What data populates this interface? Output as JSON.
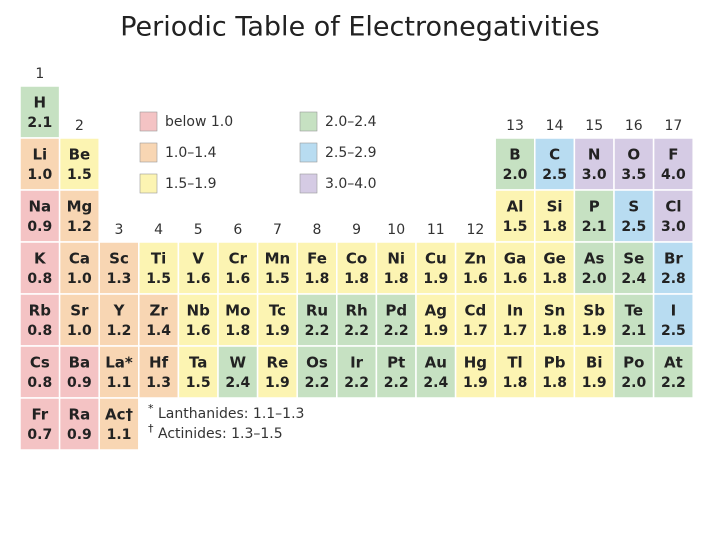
{
  "title": "Periodic Table of Electronegativities",
  "groups": [
    "1",
    "2",
    "3",
    "4",
    "5",
    "6",
    "7",
    "8",
    "9",
    "10",
    "11",
    "12",
    "13",
    "14",
    "15",
    "16",
    "17"
  ],
  "legend": [
    {
      "label": "below 1.0",
      "color": "#f4c3c4"
    },
    {
      "label": "1.0–1.4",
      "color": "#f8d6b3"
    },
    {
      "label": "1.5–1.9",
      "color": "#fcf4b2"
    },
    {
      "label": "2.0–2.4",
      "color": "#c6e1c2"
    },
    {
      "label": "2.5–2.9",
      "color": "#b8dcf1"
    },
    {
      "label": "3.0–4.0",
      "color": "#d5cbe4"
    }
  ],
  "rows": [
    [
      {
        "symbol": "H",
        "value": "2.1",
        "color": "#c6e1c2"
      },
      null,
      null,
      null,
      null,
      null,
      null,
      null,
      null,
      null,
      null,
      null,
      null,
      null,
      null,
      null,
      null
    ],
    [
      {
        "symbol": "Li",
        "value": "1.0",
        "color": "#f8d6b3"
      },
      {
        "symbol": "Be",
        "value": "1.5",
        "color": "#fcf4b2"
      },
      null,
      null,
      null,
      null,
      null,
      null,
      null,
      null,
      null,
      null,
      {
        "symbol": "B",
        "value": "2.0",
        "color": "#c6e1c2"
      },
      {
        "symbol": "C",
        "value": "2.5",
        "color": "#b8dcf1"
      },
      {
        "symbol": "N",
        "value": "3.0",
        "color": "#d5cbe4"
      },
      {
        "symbol": "O",
        "value": "3.5",
        "color": "#d5cbe4"
      },
      {
        "symbol": "F",
        "value": "4.0",
        "color": "#d5cbe4"
      }
    ],
    [
      {
        "symbol": "Na",
        "value": "0.9",
        "color": "#f4c3c4"
      },
      {
        "symbol": "Mg",
        "value": "1.2",
        "color": "#f8d6b3"
      },
      null,
      null,
      null,
      null,
      null,
      null,
      null,
      null,
      null,
      null,
      {
        "symbol": "Al",
        "value": "1.5",
        "color": "#fcf4b2"
      },
      {
        "symbol": "Si",
        "value": "1.8",
        "color": "#fcf4b2"
      },
      {
        "symbol": "P",
        "value": "2.1",
        "color": "#c6e1c2"
      },
      {
        "symbol": "S",
        "value": "2.5",
        "color": "#b8dcf1"
      },
      {
        "symbol": "Cl",
        "value": "3.0",
        "color": "#d5cbe4"
      }
    ],
    [
      {
        "symbol": "K",
        "value": "0.8",
        "color": "#f4c3c4"
      },
      {
        "symbol": "Ca",
        "value": "1.0",
        "color": "#f8d6b3"
      },
      {
        "symbol": "Sc",
        "value": "1.3",
        "color": "#f8d6b3"
      },
      {
        "symbol": "Ti",
        "value": "1.5",
        "color": "#fcf4b2"
      },
      {
        "symbol": "V",
        "value": "1.6",
        "color": "#fcf4b2"
      },
      {
        "symbol": "Cr",
        "value": "1.6",
        "color": "#fcf4b2"
      },
      {
        "symbol": "Mn",
        "value": "1.5",
        "color": "#fcf4b2"
      },
      {
        "symbol": "Fe",
        "value": "1.8",
        "color": "#fcf4b2"
      },
      {
        "symbol": "Co",
        "value": "1.8",
        "color": "#fcf4b2"
      },
      {
        "symbol": "Ni",
        "value": "1.8",
        "color": "#fcf4b2"
      },
      {
        "symbol": "Cu",
        "value": "1.9",
        "color": "#fcf4b2"
      },
      {
        "symbol": "Zn",
        "value": "1.6",
        "color": "#fcf4b2"
      },
      {
        "symbol": "Ga",
        "value": "1.6",
        "color": "#fcf4b2"
      },
      {
        "symbol": "Ge",
        "value": "1.8",
        "color": "#fcf4b2"
      },
      {
        "symbol": "As",
        "value": "2.0",
        "color": "#c6e1c2"
      },
      {
        "symbol": "Se",
        "value": "2.4",
        "color": "#c6e1c2"
      },
      {
        "symbol": "Br",
        "value": "2.8",
        "color": "#b8dcf1"
      }
    ],
    [
      {
        "symbol": "Rb",
        "value": "0.8",
        "color": "#f4c3c4"
      },
      {
        "symbol": "Sr",
        "value": "1.0",
        "color": "#f8d6b3"
      },
      {
        "symbol": "Y",
        "value": "1.2",
        "color": "#f8d6b3"
      },
      {
        "symbol": "Zr",
        "value": "1.4",
        "color": "#f8d6b3"
      },
      {
        "symbol": "Nb",
        "value": "1.6",
        "color": "#fcf4b2"
      },
      {
        "symbol": "Mo",
        "value": "1.8",
        "color": "#fcf4b2"
      },
      {
        "symbol": "Tc",
        "value": "1.9",
        "color": "#fcf4b2"
      },
      {
        "symbol": "Ru",
        "value": "2.2",
        "color": "#c6e1c2"
      },
      {
        "symbol": "Rh",
        "value": "2.2",
        "color": "#c6e1c2"
      },
      {
        "symbol": "Pd",
        "value": "2.2",
        "color": "#c6e1c2"
      },
      {
        "symbol": "Ag",
        "value": "1.9",
        "color": "#fcf4b2"
      },
      {
        "symbol": "Cd",
        "value": "1.7",
        "color": "#fcf4b2"
      },
      {
        "symbol": "In",
        "value": "1.7",
        "color": "#fcf4b2"
      },
      {
        "symbol": "Sn",
        "value": "1.8",
        "color": "#fcf4b2"
      },
      {
        "symbol": "Sb",
        "value": "1.9",
        "color": "#fcf4b2"
      },
      {
        "symbol": "Te",
        "value": "2.1",
        "color": "#c6e1c2"
      },
      {
        "symbol": "I",
        "value": "2.5",
        "color": "#b8dcf1"
      }
    ],
    [
      {
        "symbol": "Cs",
        "value": "0.8",
        "color": "#f4c3c4"
      },
      {
        "symbol": "Ba",
        "value": "0.9",
        "color": "#f4c3c4"
      },
      {
        "symbol": "La*",
        "value": "1.1",
        "color": "#f8d6b3"
      },
      {
        "symbol": "Hf",
        "value": "1.3",
        "color": "#f8d6b3"
      },
      {
        "symbol": "Ta",
        "value": "1.5",
        "color": "#fcf4b2"
      },
      {
        "symbol": "W",
        "value": "2.4",
        "color": "#c6e1c2"
      },
      {
        "symbol": "Re",
        "value": "1.9",
        "color": "#fcf4b2"
      },
      {
        "symbol": "Os",
        "value": "2.2",
        "color": "#c6e1c2"
      },
      {
        "symbol": "Ir",
        "value": "2.2",
        "color": "#c6e1c2"
      },
      {
        "symbol": "Pt",
        "value": "2.2",
        "color": "#c6e1c2"
      },
      {
        "symbol": "Au",
        "value": "2.4",
        "color": "#c6e1c2"
      },
      {
        "symbol": "Hg",
        "value": "1.9",
        "color": "#fcf4b2"
      },
      {
        "symbol": "Tl",
        "value": "1.8",
        "color": "#fcf4b2"
      },
      {
        "symbol": "Pb",
        "value": "1.8",
        "color": "#fcf4b2"
      },
      {
        "symbol": "Bi",
        "value": "1.9",
        "color": "#fcf4b2"
      },
      {
        "symbol": "Po",
        "value": "2.0",
        "color": "#c6e1c2"
      },
      {
        "symbol": "At",
        "value": "2.2",
        "color": "#c6e1c2"
      }
    ],
    [
      {
        "symbol": "Fr",
        "value": "0.7",
        "color": "#f4c3c4"
      },
      {
        "symbol": "Ra",
        "value": "0.9",
        "color": "#f4c3c4"
      },
      {
        "symbol": "Ac†",
        "value": "1.1",
        "color": "#f8d6b3"
      },
      null,
      null,
      null,
      null,
      null,
      null,
      null,
      null,
      null,
      null,
      null,
      null,
      null,
      null
    ]
  ],
  "notes": [
    {
      "mark": "*",
      "text": "Lanthanides: 1.1–1.3"
    },
    {
      "mark": "†",
      "text": "Actinides: 1.3–1.5"
    }
  ]
}
